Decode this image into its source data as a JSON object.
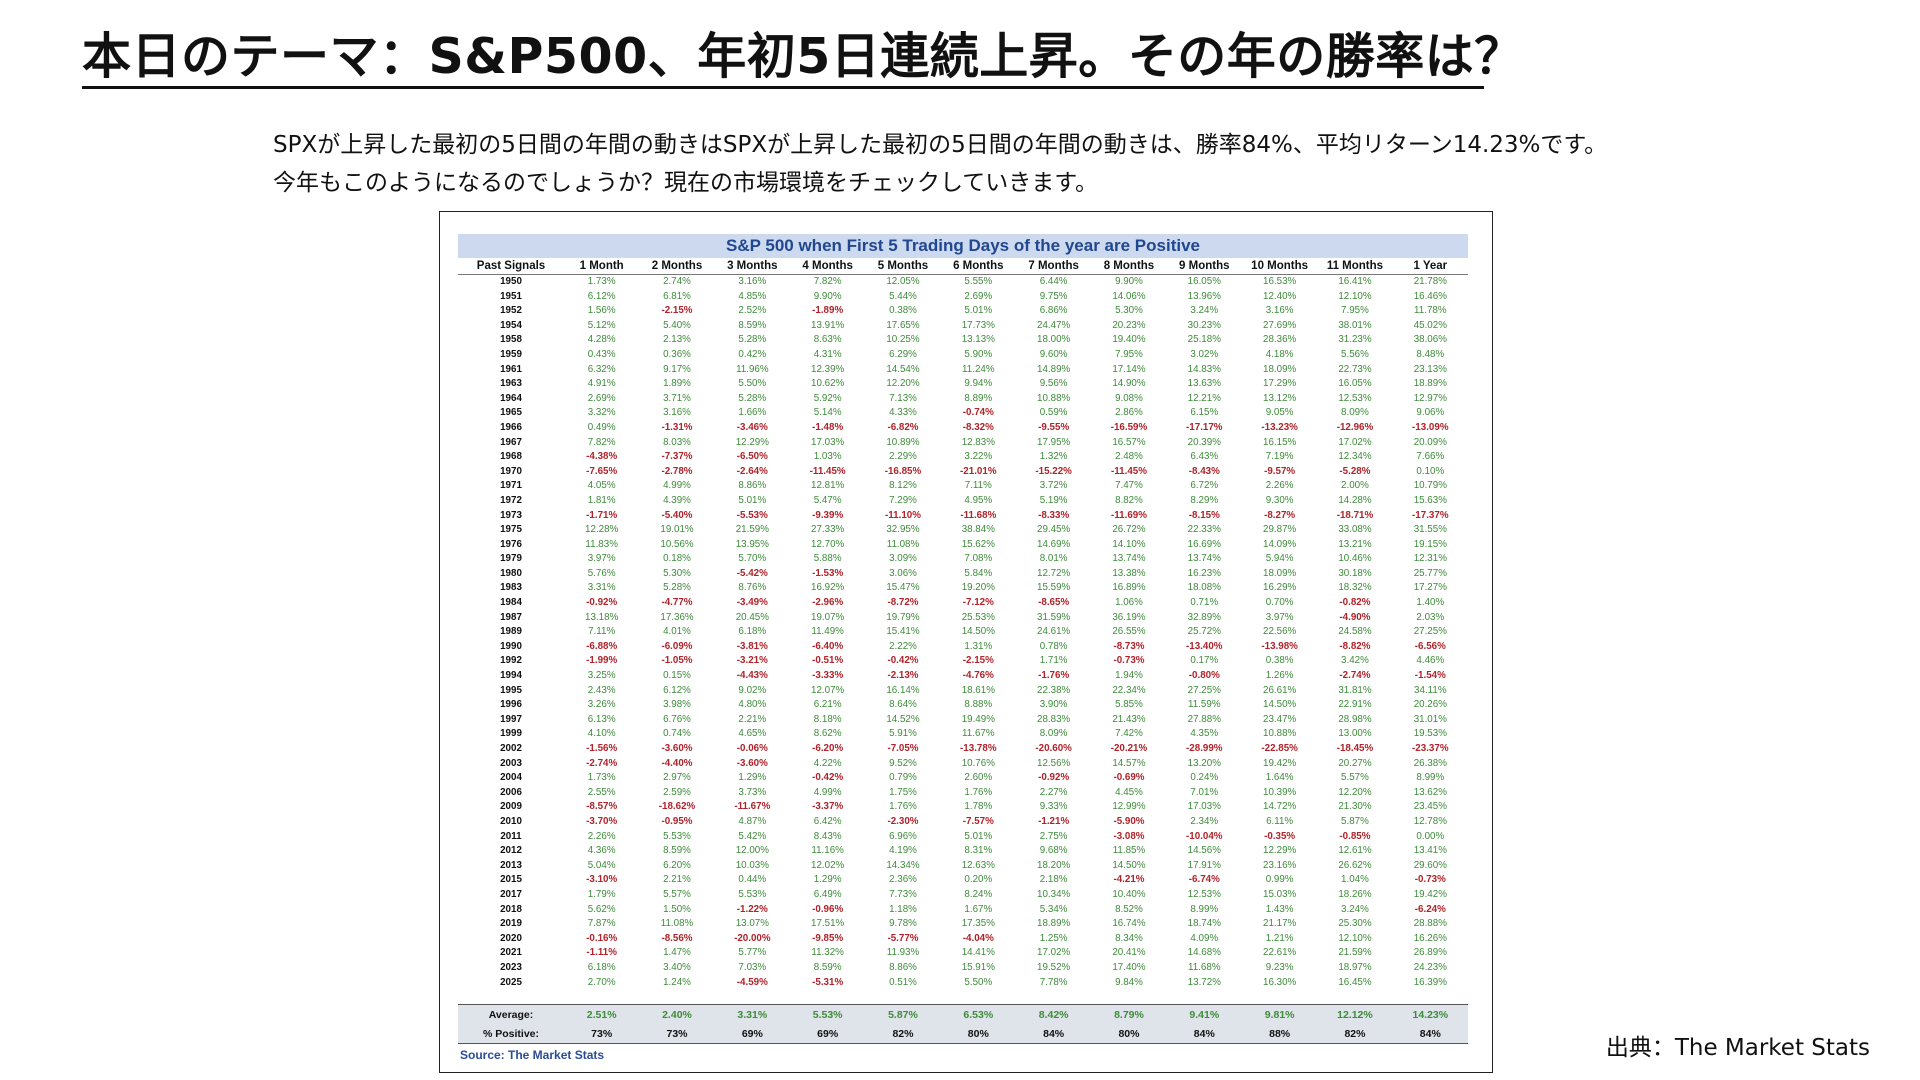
{
  "slide": {
    "title": "本日のテーマ：S&P500、年初5日連続上昇。その年の勝率は？",
    "intro_line1": "SPXが上昇した最初の5日間の年間の動きはSPXが上昇した最初の5日間の年間の動きは、勝率84%、平均リターン14.23%です。",
    "intro_line2": "今年もこのようになるのでしょうか？現在の市場環境をチェックしていきます。",
    "credit": "出典：The Market Stats"
  },
  "table": {
    "title": "S&P 500 when First 5 Trading Days of the year are Positive",
    "columns": [
      "Past Signals",
      "1 Month",
      "2 Months",
      "3 Months",
      "4 Months",
      "5 Months",
      "6 Months",
      "7 Months",
      "8 Months",
      "9 Months",
      "10 Months",
      "11 Months",
      "1 Year"
    ],
    "rows": [
      [
        "1950",
        "1.73%",
        "2.74%",
        "3.16%",
        "7.82%",
        "12.05%",
        "5.55%",
        "6.44%",
        "9.90%",
        "16.05%",
        "16.53%",
        "16.41%",
        "21.78%"
      ],
      [
        "1951",
        "6.12%",
        "6.81%",
        "4.85%",
        "9.90%",
        "5.44%",
        "2.69%",
        "9.75%",
        "14.06%",
        "13.96%",
        "12.40%",
        "12.10%",
        "16.46%"
      ],
      [
        "1952",
        "1.56%",
        "-2.15%",
        "2.52%",
        "-1.89%",
        "0.38%",
        "5.01%",
        "6.86%",
        "5.30%",
        "3.24%",
        "3.16%",
        "7.95%",
        "11.78%"
      ],
      [
        "1954",
        "5.12%",
        "5.40%",
        "8.59%",
        "13.91%",
        "17.65%",
        "17.73%",
        "24.47%",
        "20.23%",
        "30.23%",
        "27.69%",
        "38.01%",
        "45.02%"
      ],
      [
        "1958",
        "4.28%",
        "2.13%",
        "5.28%",
        "8.63%",
        "10.25%",
        "13.13%",
        "18.00%",
        "19.40%",
        "25.18%",
        "28.36%",
        "31.23%",
        "38.06%"
      ],
      [
        "1959",
        "0.43%",
        "0.36%",
        "0.42%",
        "4.31%",
        "6.29%",
        "5.90%",
        "9.60%",
        "7.95%",
        "3.02%",
        "4.18%",
        "5.56%",
        "8.48%"
      ],
      [
        "1961",
        "6.32%",
        "9.17%",
        "11.96%",
        "12.39%",
        "14.54%",
        "11.24%",
        "14.89%",
        "17.14%",
        "14.83%",
        "18.09%",
        "22.73%",
        "23.13%"
      ],
      [
        "1963",
        "4.91%",
        "1.89%",
        "5.50%",
        "10.62%",
        "12.20%",
        "9.94%",
        "9.56%",
        "14.90%",
        "13.63%",
        "17.29%",
        "16.05%",
        "18.89%"
      ],
      [
        "1964",
        "2.69%",
        "3.71%",
        "5.28%",
        "5.92%",
        "7.13%",
        "8.89%",
        "10.88%",
        "9.08%",
        "12.21%",
        "13.12%",
        "12.53%",
        "12.97%"
      ],
      [
        "1965",
        "3.32%",
        "3.16%",
        "1.66%",
        "5.14%",
        "4.33%",
        "-0.74%",
        "0.59%",
        "2.86%",
        "6.15%",
        "9.05%",
        "8.09%",
        "9.06%"
      ],
      [
        "1966",
        "0.49%",
        "-1.31%",
        "-3.46%",
        "-1.48%",
        "-6.82%",
        "-8.32%",
        "-9.55%",
        "-16.59%",
        "-17.17%",
        "-13.23%",
        "-12.96%",
        "-13.09%"
      ],
      [
        "1967",
        "7.82%",
        "8.03%",
        "12.29%",
        "17.03%",
        "10.89%",
        "12.83%",
        "17.95%",
        "16.57%",
        "20.39%",
        "16.15%",
        "17.02%",
        "20.09%"
      ],
      [
        "1968",
        "-4.38%",
        "-7.37%",
        "-6.50%",
        "1.03%",
        "2.29%",
        "3.22%",
        "1.32%",
        "2.48%",
        "6.43%",
        "7.19%",
        "12.34%",
        "7.66%"
      ],
      [
        "1970",
        "-7.65%",
        "-2.78%",
        "-2.64%",
        "-11.45%",
        "-16.85%",
        "-21.01%",
        "-15.22%",
        "-11.45%",
        "-8.43%",
        "-9.57%",
        "-5.28%",
        "0.10%"
      ],
      [
        "1971",
        "4.05%",
        "4.99%",
        "8.86%",
        "12.81%",
        "8.12%",
        "7.11%",
        "3.72%",
        "7.47%",
        "6.72%",
        "2.26%",
        "2.00%",
        "10.79%"
      ],
      [
        "1972",
        "1.81%",
        "4.39%",
        "5.01%",
        "5.47%",
        "7.29%",
        "4.95%",
        "5.19%",
        "8.82%",
        "8.29%",
        "9.30%",
        "14.28%",
        "15.63%"
      ],
      [
        "1973",
        "-1.71%",
        "-5.40%",
        "-5.53%",
        "-9.39%",
        "-11.10%",
        "-11.68%",
        "-8.33%",
        "-11.69%",
        "-8.15%",
        "-8.27%",
        "-18.71%",
        "-17.37%"
      ],
      [
        "1975",
        "12.28%",
        "19.01%",
        "21.59%",
        "27.33%",
        "32.95%",
        "38.84%",
        "29.45%",
        "26.72%",
        "22.33%",
        "29.87%",
        "33.08%",
        "31.55%"
      ],
      [
        "1976",
        "11.83%",
        "10.56%",
        "13.95%",
        "12.70%",
        "11.08%",
        "15.62%",
        "14.69%",
        "14.10%",
        "16.69%",
        "14.09%",
        "13.21%",
        "19.15%"
      ],
      [
        "1979",
        "3.97%",
        "0.18%",
        "5.70%",
        "5.88%",
        "3.09%",
        "7.08%",
        "8.01%",
        "13.74%",
        "13.74%",
        "5.94%",
        "10.46%",
        "12.31%"
      ],
      [
        "1980",
        "5.76%",
        "5.30%",
        "-5.42%",
        "-1.53%",
        "3.06%",
        "5.84%",
        "12.72%",
        "13.38%",
        "16.23%",
        "18.09%",
        "30.18%",
        "25.77%"
      ],
      [
        "1983",
        "3.31%",
        "5.28%",
        "8.76%",
        "16.92%",
        "15.47%",
        "19.20%",
        "15.59%",
        "16.89%",
        "18.08%",
        "16.29%",
        "18.32%",
        "17.27%"
      ],
      [
        "1984",
        "-0.92%",
        "-4.77%",
        "-3.49%",
        "-2.96%",
        "-8.72%",
        "-7.12%",
        "-8.65%",
        "1.06%",
        "0.71%",
        "0.70%",
        "-0.82%",
        "1.40%"
      ],
      [
        "1987",
        "13.18%",
        "17.36%",
        "20.45%",
        "19.07%",
        "19.79%",
        "25.53%",
        "31.59%",
        "36.19%",
        "32.89%",
        "3.97%",
        "-4.90%",
        "2.03%"
      ],
      [
        "1989",
        "7.11%",
        "4.01%",
        "6.18%",
        "11.49%",
        "15.41%",
        "14.50%",
        "24.61%",
        "26.55%",
        "25.72%",
        "22.56%",
        "24.58%",
        "27.25%"
      ],
      [
        "1990",
        "-6.88%",
        "-6.09%",
        "-3.81%",
        "-6.40%",
        "2.22%",
        "1.31%",
        "0.78%",
        "-8.73%",
        "-13.40%",
        "-13.98%",
        "-8.82%",
        "-6.56%"
      ],
      [
        "1992",
        "-1.99%",
        "-1.05%",
        "-3.21%",
        "-0.51%",
        "-0.42%",
        "-2.15%",
        "1.71%",
        "-0.73%",
        "0.17%",
        "0.38%",
        "3.42%",
        "4.46%"
      ],
      [
        "1994",
        "3.25%",
        "0.15%",
        "-4.43%",
        "-3.33%",
        "-2.13%",
        "-4.76%",
        "-1.76%",
        "1.94%",
        "-0.80%",
        "1.26%",
        "-2.74%",
        "-1.54%"
      ],
      [
        "1995",
        "2.43%",
        "6.12%",
        "9.02%",
        "12.07%",
        "16.14%",
        "18.61%",
        "22.38%",
        "22.34%",
        "27.25%",
        "26.61%",
        "31.81%",
        "34.11%"
      ],
      [
        "1996",
        "3.26%",
        "3.98%",
        "4.80%",
        "6.21%",
        "8.64%",
        "8.88%",
        "3.90%",
        "5.85%",
        "11.59%",
        "14.50%",
        "22.91%",
        "20.26%"
      ],
      [
        "1997",
        "6.13%",
        "6.76%",
        "2.21%",
        "8.18%",
        "14.52%",
        "19.49%",
        "28.83%",
        "21.43%",
        "27.88%",
        "23.47%",
        "28.98%",
        "31.01%"
      ],
      [
        "1999",
        "4.10%",
        "0.74%",
        "4.65%",
        "8.62%",
        "5.91%",
        "11.67%",
        "8.09%",
        "7.42%",
        "4.35%",
        "10.88%",
        "13.00%",
        "19.53%"
      ],
      [
        "2002",
        "-1.56%",
        "-3.60%",
        "-0.06%",
        "-6.20%",
        "-7.05%",
        "-13.78%",
        "-20.60%",
        "-20.21%",
        "-28.99%",
        "-22.85%",
        "-18.45%",
        "-23.37%"
      ],
      [
        "2003",
        "-2.74%",
        "-4.40%",
        "-3.60%",
        "4.22%",
        "9.52%",
        "10.76%",
        "12.56%",
        "14.57%",
        "13.20%",
        "19.42%",
        "20.27%",
        "26.38%"
      ],
      [
        "2004",
        "1.73%",
        "2.97%",
        "1.29%",
        "-0.42%",
        "0.79%",
        "2.60%",
        "-0.92%",
        "-0.69%",
        "0.24%",
        "1.64%",
        "5.57%",
        "8.99%"
      ],
      [
        "2006",
        "2.55%",
        "2.59%",
        "3.73%",
        "4.99%",
        "1.75%",
        "1.76%",
        "2.27%",
        "4.45%",
        "7.01%",
        "10.39%",
        "12.20%",
        "13.62%"
      ],
      [
        "2009",
        "-8.57%",
        "-18.62%",
        "-11.67%",
        "-3.37%",
        "1.76%",
        "1.78%",
        "9.33%",
        "12.99%",
        "17.03%",
        "14.72%",
        "21.30%",
        "23.45%"
      ],
      [
        "2010",
        "-3.70%",
        "-0.95%",
        "4.87%",
        "6.42%",
        "-2.30%",
        "-7.57%",
        "-1.21%",
        "-5.90%",
        "2.34%",
        "6.11%",
        "5.87%",
        "12.78%"
      ],
      [
        "2011",
        "2.26%",
        "5.53%",
        "5.42%",
        "8.43%",
        "6.96%",
        "5.01%",
        "2.75%",
        "-3.08%",
        "-10.04%",
        "-0.35%",
        "-0.85%",
        "0.00%"
      ],
      [
        "2012",
        "4.36%",
        "8.59%",
        "12.00%",
        "11.16%",
        "4.19%",
        "8.31%",
        "9.68%",
        "11.85%",
        "14.56%",
        "12.29%",
        "12.61%",
        "13.41%"
      ],
      [
        "2013",
        "5.04%",
        "6.20%",
        "10.03%",
        "12.02%",
        "14.34%",
        "12.63%",
        "18.20%",
        "14.50%",
        "17.91%",
        "23.16%",
        "26.62%",
        "29.60%"
      ],
      [
        "2015",
        "-3.10%",
        "2.21%",
        "0.44%",
        "1.29%",
        "2.36%",
        "0.20%",
        "2.18%",
        "-4.21%",
        "-6.74%",
        "0.99%",
        "1.04%",
        "-0.73%"
      ],
      [
        "2017",
        "1.79%",
        "5.57%",
        "5.53%",
        "6.49%",
        "7.73%",
        "8.24%",
        "10.34%",
        "10.40%",
        "12.53%",
        "15.03%",
        "18.26%",
        "19.42%"
      ],
      [
        "2018",
        "5.62%",
        "1.50%",
        "-1.22%",
        "-0.96%",
        "1.18%",
        "1.67%",
        "5.34%",
        "8.52%",
        "8.99%",
        "1.43%",
        "3.24%",
        "-6.24%"
      ],
      [
        "2019",
        "7.87%",
        "11.08%",
        "13.07%",
        "17.51%",
        "9.78%",
        "17.35%",
        "18.89%",
        "16.74%",
        "18.74%",
        "21.17%",
        "25.30%",
        "28.88%"
      ],
      [
        "2020",
        "-0.16%",
        "-8.56%",
        "-20.00%",
        "-9.85%",
        "-5.77%",
        "-4.04%",
        "1.25%",
        "8.34%",
        "4.09%",
        "1.21%",
        "12.10%",
        "16.26%"
      ],
      [
        "2021",
        "-1.11%",
        "1.47%",
        "5.77%",
        "11.32%",
        "11.93%",
        "14.41%",
        "17.02%",
        "20.41%",
        "14.68%",
        "22.61%",
        "21.59%",
        "26.89%"
      ],
      [
        "2023",
        "6.18%",
        "3.40%",
        "7.03%",
        "8.59%",
        "8.86%",
        "15.91%",
        "19.52%",
        "17.40%",
        "11.68%",
        "9.23%",
        "18.97%",
        "24.23%"
      ],
      [
        "2025",
        "2.70%",
        "1.24%",
        "-4.59%",
        "-5.31%",
        "0.51%",
        "5.50%",
        "7.78%",
        "9.84%",
        "13.72%",
        "16.30%",
        "16.45%",
        "16.39%"
      ]
    ],
    "average_label": "Average:",
    "average": [
      "2.51%",
      "2.40%",
      "3.31%",
      "5.53%",
      "5.87%",
      "6.53%",
      "8.42%",
      "8.79%",
      "9.41%",
      "9.81%",
      "12.12%",
      "14.23%"
    ],
    "positive_label": "% Positive:",
    "positive": [
      "73%",
      "73%",
      "69%",
      "69%",
      "82%",
      "80%",
      "84%",
      "80%",
      "84%",
      "88%",
      "82%",
      "84%"
    ],
    "source": "Source: The Market Stats"
  },
  "colors": {
    "positive": "#3e8b3a",
    "negative": "#b0232a",
    "banner_bg": "#cdd9ee",
    "banner_text": "#21488f",
    "source_text": "#2a4d96"
  }
}
